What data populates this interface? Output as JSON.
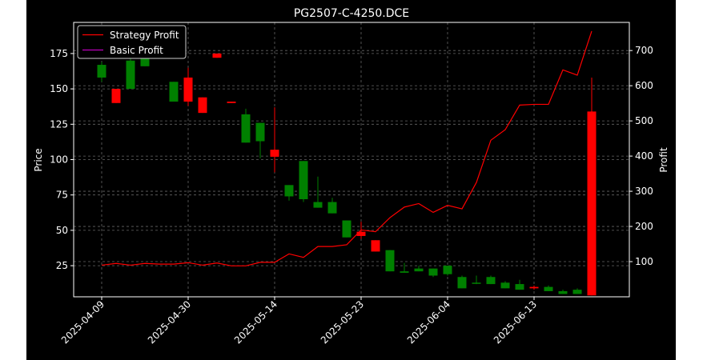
{
  "chart_data": {
    "type": "candlestick",
    "title": "PG2507-C-4250.DCE",
    "ylabel_left": "Price",
    "ylabel_right": "Profit",
    "x_tick_labels": [
      "2025-04-09",
      "2025-04-30",
      "2025-05-14",
      "2025-05-23",
      "2025-06-04",
      "2025-06-13"
    ],
    "x_tick_indices": [
      0,
      6,
      12,
      18,
      24,
      30
    ],
    "ylim_left": [
      3,
      197
    ],
    "ylim_right": [
      0,
      780
    ],
    "yticks_left": [
      25,
      50,
      75,
      100,
      125,
      150,
      175
    ],
    "yticks_right": [
      100,
      200,
      300,
      400,
      500,
      600,
      700
    ],
    "grid": true,
    "legend_position": "top-left",
    "legend": [
      {
        "label": "Strategy Profit",
        "color": "#ff0000"
      },
      {
        "label": "Basic Profit",
        "color": "#bf00bf"
      }
    ],
    "colors": {
      "up": "#008000",
      "down": "#ff0000",
      "background": "#000000"
    },
    "candles": [
      {
        "i": 0,
        "open": 158,
        "high": 169,
        "low": 155,
        "close": 167
      },
      {
        "i": 1,
        "open": 150,
        "high": 150,
        "low": 140,
        "close": 140
      },
      {
        "i": 2,
        "open": 150,
        "high": 172,
        "low": 150,
        "close": 170
      },
      {
        "i": 3,
        "open": 166,
        "high": 190,
        "low": 166,
        "close": 182
      },
      {
        "i": 5,
        "open": 141,
        "high": 155,
        "low": 141,
        "close": 155
      },
      {
        "i": 6,
        "open": 158,
        "high": 165,
        "low": 138,
        "close": 141
      },
      {
        "i": 7,
        "open": 144,
        "high": 144,
        "low": 133,
        "close": 133
      },
      {
        "i": 8,
        "open": 175,
        "high": 175,
        "low": 172,
        "close": 172
      },
      {
        "i": 9,
        "open": 141,
        "high": 141,
        "low": 140,
        "close": 140
      },
      {
        "i": 10,
        "open": 112,
        "high": 136,
        "low": 112,
        "close": 132
      },
      {
        "i": 11,
        "open": 113,
        "high": 126,
        "low": 101,
        "close": 126
      },
      {
        "i": 12,
        "open": 107,
        "high": 137,
        "low": 91,
        "close": 102
      },
      {
        "i": 13,
        "open": 74,
        "high": 82,
        "low": 71,
        "close": 82
      },
      {
        "i": 14,
        "open": 72,
        "high": 99,
        "low": 70,
        "close": 99
      },
      {
        "i": 15,
        "open": 66,
        "high": 88,
        "low": 66,
        "close": 70
      },
      {
        "i": 16,
        "open": 62,
        "high": 73,
        "low": 62,
        "close": 70
      },
      {
        "i": 17,
        "open": 45,
        "high": 57,
        "low": 45,
        "close": 57
      },
      {
        "i": 18,
        "open": 49,
        "high": 56,
        "low": 44,
        "close": 46
      },
      {
        "i": 19,
        "open": 43,
        "high": 43,
        "low": 35,
        "close": 35
      },
      {
        "i": 20,
        "open": 21,
        "high": 36,
        "low": 21,
        "close": 36
      },
      {
        "i": 21,
        "open": 20,
        "high": 27,
        "low": 20,
        "close": 21
      },
      {
        "i": 22,
        "open": 21,
        "high": 25,
        "low": 21,
        "close": 23
      },
      {
        "i": 23,
        "open": 18,
        "high": 23,
        "low": 17,
        "close": 23
      },
      {
        "i": 24,
        "open": 19,
        "high": 25,
        "low": 18,
        "close": 25
      },
      {
        "i": 25,
        "open": 9,
        "high": 18,
        "low": 9,
        "close": 17
      },
      {
        "i": 26,
        "open": 13,
        "high": 18,
        "low": 12,
        "close": 13
      },
      {
        "i": 27,
        "open": 12,
        "high": 18,
        "low": 12,
        "close": 17
      },
      {
        "i": 28,
        "open": 9,
        "high": 14,
        "low": 9,
        "close": 13
      },
      {
        "i": 29,
        "open": 8,
        "high": 15,
        "low": 8,
        "close": 12
      },
      {
        "i": 30,
        "open": 10,
        "high": 11,
        "low": 8,
        "close": 9
      },
      {
        "i": 31,
        "open": 7,
        "high": 11,
        "low": 7,
        "close": 10
      },
      {
        "i": 32,
        "open": 5,
        "high": 8,
        "low": 5,
        "close": 7
      },
      {
        "i": 33,
        "open": 5,
        "high": 9,
        "low": 5,
        "close": 8
      },
      {
        "i": 34,
        "open": 134,
        "high": 158,
        "low": 4,
        "close": 4
      }
    ],
    "series": [
      {
        "name": "Strategy Profit",
        "color": "#ff0000",
        "x": [
          0,
          1,
          2,
          3,
          4,
          5,
          6,
          7,
          8,
          9,
          10,
          11,
          12,
          13,
          14,
          15,
          16,
          17,
          18,
          19,
          20,
          21,
          22,
          23,
          24,
          25,
          26,
          27,
          28,
          29,
          30,
          31,
          32,
          33,
          34
        ],
        "values": [
          90,
          95,
          90,
          95,
          93,
          93,
          97,
          90,
          96,
          88,
          88,
          98,
          98,
          122,
          112,
          143,
          143,
          148,
          190,
          185,
          225,
          255,
          265,
          240,
          260,
          250,
          325,
          445,
          475,
          545,
          547,
          547,
          645,
          630,
          755
        ]
      },
      {
        "name": "Basic Profit",
        "color": "#bf00bf",
        "x": [],
        "values": []
      }
    ]
  }
}
